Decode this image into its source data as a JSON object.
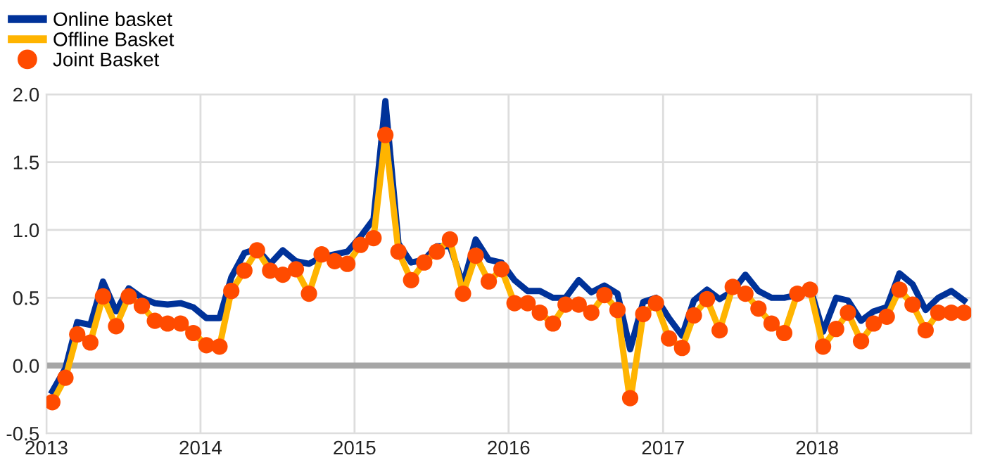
{
  "chart_data": {
    "type": "line",
    "x": [
      "2013-01-15",
      "2013-02-15",
      "2013-03-15",
      "2013-04-15",
      "2013-05-15",
      "2013-06-15",
      "2013-07-15",
      "2013-08-15",
      "2013-09-15",
      "2013-10-15",
      "2013-11-15",
      "2013-12-15",
      "2014-01-15",
      "2014-02-15",
      "2014-03-15",
      "2014-04-15",
      "2014-05-15",
      "2014-06-15",
      "2014-07-15",
      "2014-08-15",
      "2014-09-15",
      "2014-10-15",
      "2014-11-15",
      "2014-12-15",
      "2015-01-15",
      "2015-02-15",
      "2015-03-15",
      "2015-04-15",
      "2015-05-15",
      "2015-06-15",
      "2015-07-15",
      "2015-08-15",
      "2015-09-15",
      "2015-10-15",
      "2015-11-15",
      "2015-12-15",
      "2016-01-15",
      "2016-02-15",
      "2016-03-15",
      "2016-04-15",
      "2016-05-15",
      "2016-06-15",
      "2016-07-15",
      "2016-08-15",
      "2016-09-15",
      "2016-10-15",
      "2016-11-15",
      "2016-12-15",
      "2017-01-15",
      "2017-02-15",
      "2017-03-15",
      "2017-04-15",
      "2017-05-15",
      "2017-06-15",
      "2017-07-15",
      "2017-08-15",
      "2017-09-15",
      "2017-10-15",
      "2017-11-15",
      "2017-12-15",
      "2018-01-15",
      "2018-02-15",
      "2018-03-15",
      "2018-04-15",
      "2018-05-15",
      "2018-06-15",
      "2018-07-15",
      "2018-08-15",
      "2018-09-15",
      "2018-10-15",
      "2018-11-15",
      "2018-12-15"
    ],
    "series": [
      {
        "name": "Online basket",
        "color": "#003299",
        "values": [
          -0.19,
          -0.02,
          0.32,
          0.3,
          0.62,
          0.4,
          0.57,
          0.5,
          0.46,
          0.45,
          0.46,
          0.43,
          0.35,
          0.35,
          0.65,
          0.83,
          0.86,
          0.75,
          0.85,
          0.77,
          0.75,
          0.8,
          0.82,
          0.84,
          0.95,
          1.08,
          1.95,
          0.9,
          0.76,
          0.78,
          0.88,
          0.88,
          0.6,
          0.93,
          0.78,
          0.76,
          0.63,
          0.55,
          0.55,
          0.5,
          0.5,
          0.63,
          0.54,
          0.59,
          0.53,
          0.12,
          0.47,
          0.5,
          0.35,
          0.22,
          0.48,
          0.56,
          0.49,
          0.55,
          0.67,
          0.55,
          0.5,
          0.5,
          0.52,
          0.58,
          0.25,
          0.5,
          0.48,
          0.33,
          0.4,
          0.43,
          0.68,
          0.6,
          0.41,
          0.5,
          0.55,
          0.48
        ]
      },
      {
        "name": "Offline Basket",
        "color": "#ffb400",
        "values": [
          -0.27,
          -0.09,
          0.23,
          0.17,
          0.51,
          0.29,
          0.51,
          0.44,
          0.33,
          0.31,
          0.31,
          0.24,
          0.15,
          0.14,
          0.55,
          0.7,
          0.85,
          0.7,
          0.67,
          0.71,
          0.53,
          0.82,
          0.77,
          0.75,
          0.89,
          0.94,
          1.7,
          0.84,
          0.63,
          0.76,
          0.84,
          0.93,
          0.53,
          0.81,
          0.62,
          0.71,
          0.46,
          0.46,
          0.39,
          0.31,
          0.45,
          0.45,
          0.39,
          0.52,
          0.41,
          -0.27,
          0.38,
          0.46,
          0.2,
          0.13,
          0.37,
          0.49,
          0.26,
          0.58,
          0.53,
          0.42,
          0.31,
          0.24,
          0.53,
          0.56,
          0.14,
          0.27,
          0.39,
          0.18,
          0.31,
          0.36,
          0.56,
          0.45,
          0.26,
          0.39,
          0.39,
          0.39
        ]
      },
      {
        "name": "Joint Basket",
        "type": "scatter",
        "marker": "circle",
        "color": "#ff4b00",
        "values": [
          -0.27,
          -0.09,
          0.23,
          0.17,
          0.51,
          0.29,
          0.51,
          0.44,
          0.33,
          0.31,
          0.31,
          0.24,
          0.15,
          0.14,
          0.55,
          0.7,
          0.85,
          0.7,
          0.67,
          0.71,
          0.53,
          0.82,
          0.77,
          0.75,
          0.89,
          0.94,
          1.7,
          0.84,
          0.63,
          0.76,
          0.84,
          0.93,
          0.53,
          0.81,
          0.62,
          0.71,
          0.46,
          0.46,
          0.39,
          0.31,
          0.45,
          0.45,
          0.39,
          0.52,
          0.41,
          -0.24,
          0.38,
          0.46,
          0.2,
          0.13,
          0.37,
          0.49,
          0.26,
          0.58,
          0.53,
          0.42,
          0.31,
          0.24,
          0.53,
          0.56,
          0.14,
          0.27,
          0.39,
          0.18,
          0.31,
          0.36,
          0.56,
          0.45,
          0.26,
          0.39,
          0.39,
          0.39
        ]
      }
    ],
    "xlim": [
      "2013-01-01",
      "2019-01-01"
    ],
    "xticks": [
      {
        "value": "2013-01-01",
        "label": "2013"
      },
      {
        "value": "2014-01-01",
        "label": "2014"
      },
      {
        "value": "2015-01-01",
        "label": "2015"
      },
      {
        "value": "2016-01-01",
        "label": "2016"
      },
      {
        "value": "2017-01-01",
        "label": "2017"
      },
      {
        "value": "2018-01-01",
        "label": "2018"
      },
      {
        "value": "2019-01-01",
        "label": null
      }
    ],
    "ylim": [
      -0.5,
      2.0
    ],
    "yticks": [
      {
        "value": -0.5,
        "label": "-0.5"
      },
      {
        "value": 0.0,
        "label": "0.0"
      },
      {
        "value": 0.5,
        "label": "0.5"
      },
      {
        "value": 1.0,
        "label": "1.0"
      },
      {
        "value": 1.5,
        "label": "1.5"
      },
      {
        "value": 2.0,
        "label": "2.0"
      }
    ],
    "ref_lines": [
      {
        "axis": "y",
        "value": 0,
        "label": null,
        "color": "#a6a6a6"
      }
    ],
    "grid": true,
    "legend": "top left"
  }
}
